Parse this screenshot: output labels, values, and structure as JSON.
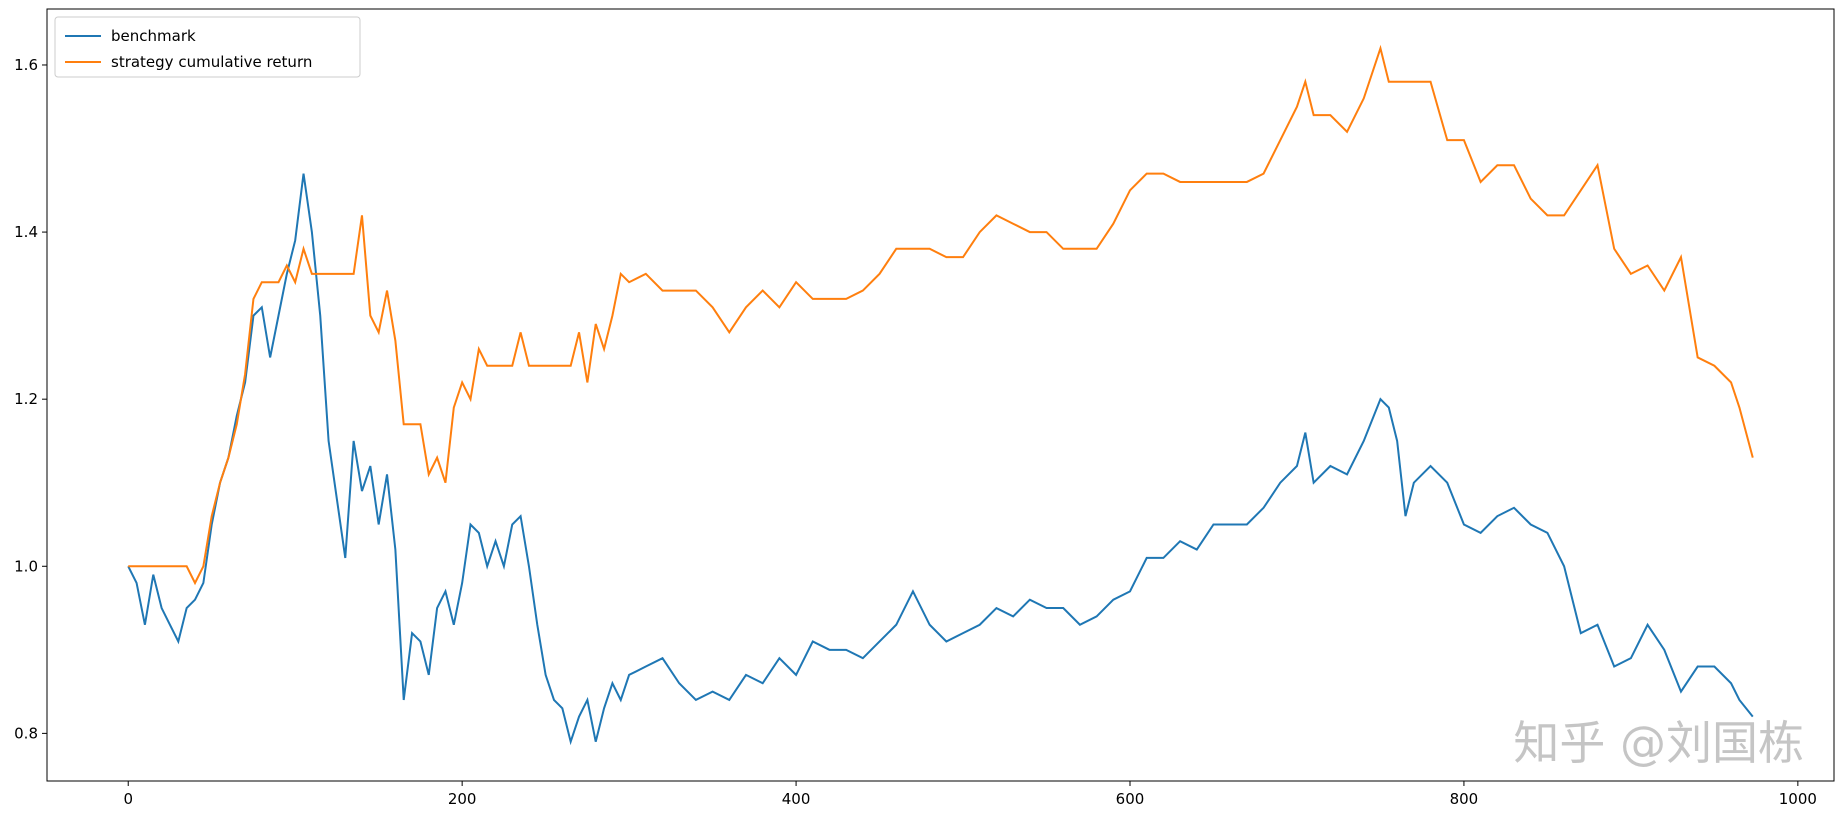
{
  "chart_data": {
    "type": "line",
    "legend": "upper left",
    "annotation": "知乎 @刘国栋",
    "xlim": [
      -48.65,
      1021.65
    ],
    "ylim": [
      0.743,
      1.667
    ],
    "xticks": [
      0,
      200,
      400,
      600,
      800,
      1000
    ],
    "yticks": [
      0.8,
      {
        "value": 1.0,
        "label": "1.0"
      },
      1.2,
      1.4,
      1.6
    ],
    "x": [
      0,
      5,
      10,
      15,
      20,
      25,
      30,
      35,
      40,
      45,
      50,
      55,
      60,
      65,
      70,
      75,
      80,
      85,
      90,
      95,
      100,
      105,
      110,
      115,
      120,
      125,
      130,
      135,
      140,
      145,
      150,
      155,
      160,
      165,
      170,
      175,
      180,
      185,
      190,
      195,
      200,
      205,
      210,
      215,
      220,
      225,
      230,
      235,
      240,
      245,
      250,
      255,
      260,
      265,
      270,
      275,
      280,
      285,
      290,
      295,
      300,
      310,
      320,
      330,
      340,
      350,
      360,
      370,
      380,
      390,
      400,
      410,
      420,
      430,
      440,
      450,
      460,
      470,
      480,
      490,
      500,
      510,
      520,
      530,
      540,
      550,
      560,
      570,
      580,
      590,
      600,
      610,
      620,
      630,
      640,
      650,
      660,
      670,
      680,
      690,
      700,
      705,
      710,
      720,
      730,
      740,
      750,
      755,
      760,
      765,
      770,
      780,
      790,
      800,
      810,
      820,
      830,
      840,
      850,
      860,
      870,
      880,
      890,
      900,
      910,
      920,
      930,
      940,
      950,
      960,
      965,
      973
    ],
    "series": [
      {
        "name": "benchmark",
        "color": "#1f77b4",
        "values": [
          1.0,
          0.98,
          0.93,
          0.99,
          0.95,
          0.93,
          0.91,
          0.95,
          0.96,
          0.98,
          1.05,
          1.1,
          1.13,
          1.18,
          1.22,
          1.3,
          1.31,
          1.25,
          1.3,
          1.35,
          1.39,
          1.47,
          1.4,
          1.3,
          1.15,
          1.08,
          1.01,
          1.15,
          1.09,
          1.12,
          1.05,
          1.11,
          1.02,
          0.84,
          0.92,
          0.91,
          0.87,
          0.95,
          0.97,
          0.93,
          0.98,
          1.05,
          1.04,
          1.0,
          1.03,
          1.0,
          1.05,
          1.06,
          1.0,
          0.93,
          0.87,
          0.84,
          0.83,
          0.79,
          0.82,
          0.84,
          0.79,
          0.83,
          0.86,
          0.84,
          0.87,
          0.88,
          0.89,
          0.86,
          0.84,
          0.85,
          0.84,
          0.87,
          0.86,
          0.89,
          0.87,
          0.91,
          0.9,
          0.9,
          0.89,
          0.91,
          0.93,
          0.97,
          0.93,
          0.91,
          0.92,
          0.93,
          0.95,
          0.94,
          0.96,
          0.95,
          0.95,
          0.93,
          0.94,
          0.96,
          0.97,
          1.01,
          1.01,
          1.03,
          1.02,
          1.05,
          1.05,
          1.05,
          1.07,
          1.1,
          1.12,
          1.16,
          1.1,
          1.12,
          1.11,
          1.15,
          1.2,
          1.19,
          1.15,
          1.06,
          1.1,
          1.12,
          1.1,
          1.05,
          1.04,
          1.06,
          1.07,
          1.05,
          1.04,
          1.0,
          0.92,
          0.93,
          0.88,
          0.89,
          0.93,
          0.9,
          0.85,
          0.88,
          0.88,
          0.86,
          0.84,
          0.82
        ]
      },
      {
        "name": "strategy cumulative return",
        "color": "#ff7f0e",
        "values": [
          1.0,
          1.0,
          1.0,
          1.0,
          1.0,
          1.0,
          1.0,
          1.0,
          0.98,
          1.0,
          1.06,
          1.1,
          1.13,
          1.17,
          1.23,
          1.32,
          1.34,
          1.34,
          1.34,
          1.36,
          1.34,
          1.38,
          1.35,
          1.35,
          1.35,
          1.35,
          1.35,
          1.35,
          1.42,
          1.3,
          1.28,
          1.33,
          1.27,
          1.17,
          1.17,
          1.17,
          1.11,
          1.13,
          1.1,
          1.19,
          1.22,
          1.2,
          1.26,
          1.24,
          1.24,
          1.24,
          1.24,
          1.28,
          1.24,
          1.24,
          1.24,
          1.24,
          1.24,
          1.24,
          1.28,
          1.22,
          1.29,
          1.26,
          1.3,
          1.35,
          1.34,
          1.35,
          1.33,
          1.33,
          1.33,
          1.31,
          1.28,
          1.31,
          1.33,
          1.31,
          1.34,
          1.32,
          1.32,
          1.32,
          1.33,
          1.35,
          1.38,
          1.38,
          1.38,
          1.37,
          1.37,
          1.4,
          1.42,
          1.41,
          1.4,
          1.4,
          1.38,
          1.38,
          1.38,
          1.41,
          1.45,
          1.47,
          1.47,
          1.46,
          1.46,
          1.46,
          1.46,
          1.46,
          1.47,
          1.51,
          1.55,
          1.58,
          1.54,
          1.54,
          1.52,
          1.56,
          1.62,
          1.58,
          1.58,
          1.58,
          1.58,
          1.58,
          1.51,
          1.51,
          1.46,
          1.48,
          1.48,
          1.44,
          1.42,
          1.42,
          1.45,
          1.48,
          1.38,
          1.35,
          1.36,
          1.33,
          1.37,
          1.25,
          1.24,
          1.22,
          1.19,
          1.13
        ]
      }
    ]
  }
}
